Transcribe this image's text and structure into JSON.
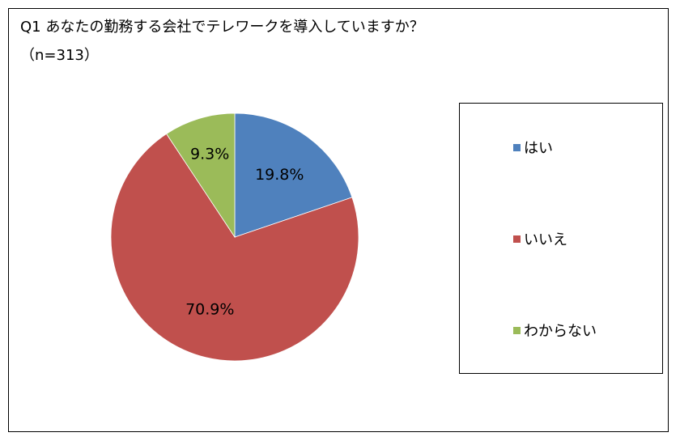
{
  "chart_data": {
    "type": "pie",
    "title": "Q1 あなたの勤務する会社でテレワークを導入していますか？",
    "subtitle": "（n=313）",
    "slices": [
      {
        "label": "はい",
        "value": 19.8,
        "display": "19.8%",
        "color": "#4F81BD"
      },
      {
        "label": "いいえ",
        "value": 70.9,
        "display": "70.9%",
        "color": "#C0504D"
      },
      {
        "label": "わからない",
        "value": 9.3,
        "display": "9.3%",
        "color": "#9BBB59"
      }
    ],
    "legend_position": "right"
  }
}
